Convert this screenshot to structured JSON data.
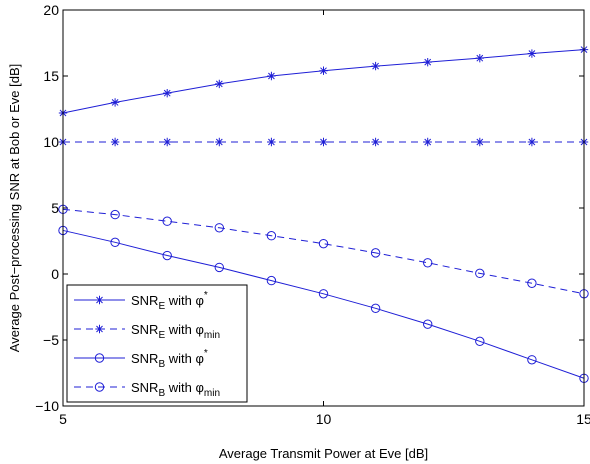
{
  "chart_data": {
    "type": "line",
    "title": "",
    "xlabel": "Average Transmit Power at Eve [dB]",
    "ylabel": "Average Post−processing SNR at Bob or Eve [dB]",
    "xlim": [
      5,
      15
    ],
    "ylim": [
      -10,
      20
    ],
    "xticks": [
      5,
      10,
      15
    ],
    "yticks": [
      -10,
      -5,
      0,
      5,
      10,
      15,
      20
    ],
    "xtick_labels": [
      "5",
      "10",
      "15"
    ],
    "ytick_labels": [
      "−10",
      "−5",
      "0",
      "5",
      "10",
      "15",
      "20"
    ],
    "grid": false,
    "legend_position": "bottom-left",
    "x": [
      5,
      6,
      7,
      8,
      9,
      10,
      11,
      12,
      13,
      14,
      15
    ],
    "series": [
      {
        "name": "SNR_E with φ*",
        "legend_parts": {
          "base": "SNR",
          "sub": "E",
          "mid": " with φ",
          "sup": "*",
          "sub2": ""
        },
        "values": [
          12.2,
          13.0,
          13.7,
          14.4,
          15.0,
          15.4,
          15.75,
          16.05,
          16.35,
          16.7,
          17.0
        ],
        "marker": "star",
        "dash": "solid",
        "color": "#1f1fd6"
      },
      {
        "name": "SNR_E with φ_min",
        "legend_parts": {
          "base": "SNR",
          "sub": "E",
          "mid": " with φ",
          "sup": "",
          "sub2": "min"
        },
        "values": [
          10,
          10,
          10,
          10,
          10,
          10,
          10,
          10,
          10,
          10,
          10
        ],
        "marker": "star",
        "dash": "dashed",
        "color": "#1f1fd6"
      },
      {
        "name": "SNR_B with φ*",
        "legend_parts": {
          "base": "SNR",
          "sub": "B",
          "mid": " with φ",
          "sup": "*",
          "sub2": ""
        },
        "values": [
          3.3,
          2.4,
          1.4,
          0.5,
          -0.5,
          -1.5,
          -2.6,
          -3.8,
          -5.1,
          -6.5,
          -7.9
        ],
        "marker": "circle",
        "dash": "solid",
        "color": "#1f1fd6"
      },
      {
        "name": "SNR_B with φ_min",
        "legend_parts": {
          "base": "SNR",
          "sub": "B",
          "mid": " with φ",
          "sup": "",
          "sub2": "min"
        },
        "values": [
          4.9,
          4.5,
          4.0,
          3.5,
          2.9,
          2.3,
          1.6,
          0.85,
          0.05,
          -0.7,
          -1.5
        ],
        "marker": "circle",
        "dash": "dashed",
        "color": "#1f1fd6"
      }
    ]
  }
}
